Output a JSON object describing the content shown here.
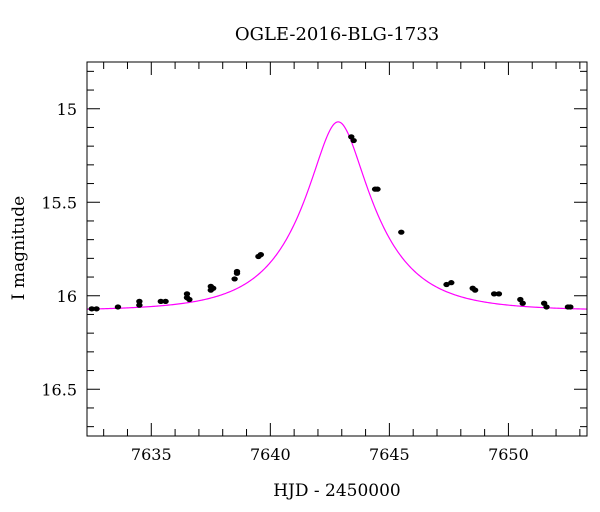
{
  "chart_data": {
    "type": "scatter",
    "title": "OGLE-2016-BLG-1733",
    "xlabel": "HJD - 2450000",
    "ylabel": "I magnitude",
    "xlim": [
      7632.3,
      7653.3
    ],
    "ylim": [
      16.75,
      14.75
    ],
    "y_inverted": true,
    "x_ticks": [
      7635,
      7640,
      7645,
      7650
    ],
    "y_ticks": [
      15,
      15.5,
      16,
      16.5
    ],
    "x_tick_labels": [
      "7635",
      "7640",
      "7645",
      "7650"
    ],
    "y_tick_labels": [
      "15",
      "15.5",
      "16",
      "16.5"
    ],
    "grid": false,
    "colors": {
      "model": "#ff00ff",
      "points": "#000000"
    },
    "model": {
      "name": "",
      "baseline_mag": 16.08,
      "peak_mag": 15.07,
      "t0": 7642.85,
      "tE": 2.95,
      "u0": 0.35
    },
    "series": [
      {
        "name": "",
        "points": [
          [
            7632.5,
            16.07
          ],
          [
            7632.7,
            16.07
          ],
          [
            7633.6,
            16.06
          ],
          [
            7634.5,
            16.05
          ],
          [
            7634.5,
            16.03
          ],
          [
            7635.4,
            16.03
          ],
          [
            7635.6,
            16.03
          ],
          [
            7636.5,
            16.01
          ],
          [
            7636.6,
            16.02
          ],
          [
            7636.5,
            15.99
          ],
          [
            7637.5,
            15.97
          ],
          [
            7637.5,
            15.95
          ],
          [
            7637.6,
            15.96
          ],
          [
            7638.5,
            15.91
          ],
          [
            7638.6,
            15.87
          ],
          [
            7638.6,
            15.88
          ],
          [
            7639.5,
            15.79
          ],
          [
            7639.6,
            15.78
          ],
          [
            7643.4,
            15.15
          ],
          [
            7643.5,
            15.17
          ],
          [
            7644.4,
            15.43
          ],
          [
            7644.5,
            15.43
          ],
          [
            7645.5,
            15.66
          ],
          [
            7647.4,
            15.94
          ],
          [
            7647.6,
            15.93
          ],
          [
            7648.5,
            15.96
          ],
          [
            7648.6,
            15.97
          ],
          [
            7649.4,
            15.99
          ],
          [
            7649.6,
            15.99
          ],
          [
            7650.5,
            16.02
          ],
          [
            7650.6,
            16.04
          ],
          [
            7651.5,
            16.04
          ],
          [
            7651.6,
            16.06
          ],
          [
            7652.5,
            16.06
          ],
          [
            7652.6,
            16.06
          ]
        ]
      }
    ]
  }
}
